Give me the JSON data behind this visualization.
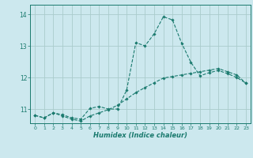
{
  "xlabel": "Humidex (Indice chaleur)",
  "background_color": "#cce8ee",
  "grid_color": "#aacccc",
  "line_color": "#1a7a6e",
  "xlim": [
    -0.5,
    23.5
  ],
  "ylim": [
    10.55,
    14.3
  ],
  "yticks": [
    11,
    12,
    13,
    14
  ],
  "xticks": [
    0,
    1,
    2,
    3,
    4,
    5,
    6,
    7,
    8,
    9,
    10,
    11,
    12,
    13,
    14,
    15,
    16,
    17,
    18,
    19,
    20,
    21,
    22,
    23
  ],
  "series1_x": [
    0,
    1,
    2,
    3,
    4,
    5,
    6,
    7,
    8,
    9,
    10,
    11,
    12,
    13,
    14,
    15,
    16,
    17,
    18,
    19,
    20,
    21,
    22,
    23
  ],
  "series1_y": [
    10.8,
    10.72,
    10.88,
    10.82,
    10.72,
    10.68,
    11.02,
    11.08,
    11.0,
    11.0,
    11.6,
    13.1,
    13.0,
    13.38,
    13.92,
    13.82,
    13.08,
    12.48,
    12.05,
    12.15,
    12.22,
    12.12,
    12.0,
    11.82
  ],
  "series2_x": [
    0,
    1,
    2,
    3,
    4,
    5,
    6,
    7,
    8,
    9,
    10,
    11,
    12,
    13,
    14,
    15,
    16,
    17,
    18,
    19,
    20,
    21,
    22,
    23
  ],
  "series2_y": [
    10.8,
    10.72,
    10.88,
    10.78,
    10.68,
    10.62,
    10.78,
    10.88,
    10.98,
    11.12,
    11.32,
    11.52,
    11.68,
    11.83,
    11.98,
    12.03,
    12.08,
    12.13,
    12.18,
    12.23,
    12.28,
    12.18,
    12.08,
    11.82
  ]
}
